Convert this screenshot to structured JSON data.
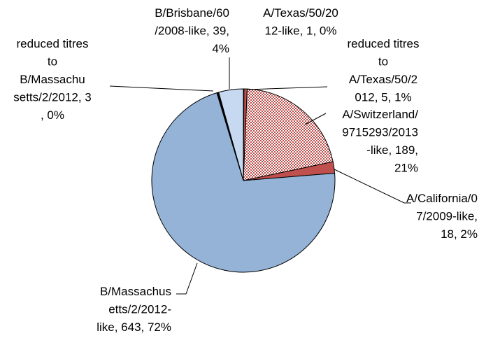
{
  "chart_data": {
    "type": "pie",
    "values": [
      1,
      5,
      189,
      18,
      643,
      3,
      39
    ],
    "value_labels": [
      "A/Texas/50/2012-like, 1, 0%",
      "reduced titres to A/Texas/50/2012, 5, 1%",
      "A/Switzerland/9715293/2013-like, 189, 21%",
      "A/California/07/2009-like, 18, 2%",
      "B/Massachusetts/2/2012-like, 643, 72%",
      "reduced titres to B/Massachusetts/2/2012, 3, 0%",
      "B/Brisbane/60/2008-like, 39, 4%"
    ],
    "colors": [
      "#c0504d",
      "#c0504d",
      "#c0504d",
      "#c0504d",
      "#95b3d7",
      "#000000",
      "#c6d9f1"
    ],
    "patterned": [
      false,
      false,
      true,
      false,
      false,
      false,
      false
    ],
    "start_angle": 0,
    "direction": "clockwise"
  }
}
